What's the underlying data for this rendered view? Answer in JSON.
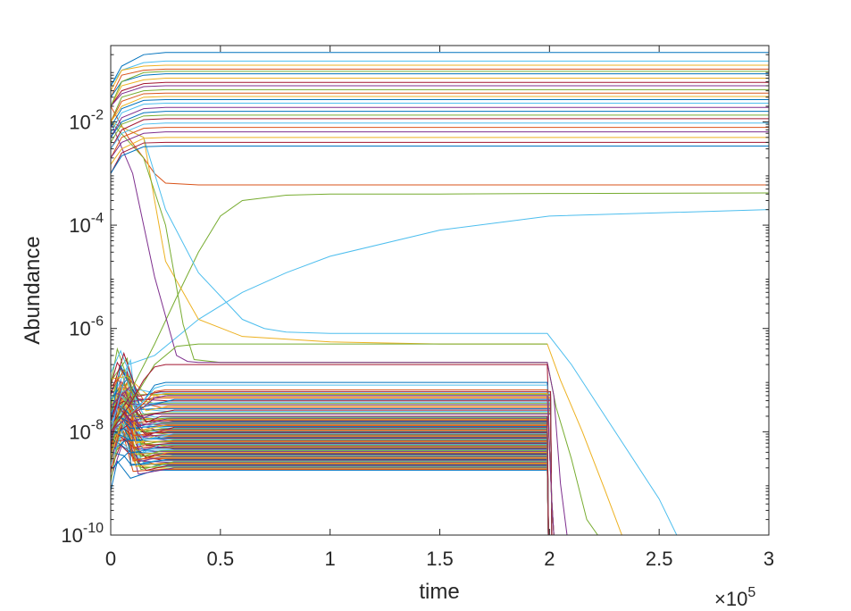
{
  "chart_data": {
    "type": "line",
    "xlabel": "time",
    "ylabel": "Abundance",
    "x_multiplier_label": "×10",
    "x_multiplier_exponent": "5",
    "xlim": [
      0,
      300000
    ],
    "ylim": [
      1e-10,
      0.3
    ],
    "yscale": "log",
    "grid": false,
    "legend": "none",
    "x_ticks": [
      {
        "value": 0,
        "label": "0"
      },
      {
        "value": 50000,
        "label": "0.5"
      },
      {
        "value": 100000,
        "label": "1"
      },
      {
        "value": 150000,
        "label": "1.5"
      },
      {
        "value": 200000,
        "label": "2"
      },
      {
        "value": 250000,
        "label": "2.5"
      },
      {
        "value": 300000,
        "label": "3"
      }
    ],
    "y_ticks": [
      {
        "value": 1e-10,
        "base": "10",
        "exp": "-10"
      },
      {
        "value": 1e-08,
        "base": "10",
        "exp": "-8"
      },
      {
        "value": 1e-06,
        "base": "10",
        "exp": "-6"
      },
      {
        "value": 0.0001,
        "base": "10",
        "exp": "-4"
      },
      {
        "value": 0.01,
        "base": "10",
        "exp": "-2"
      }
    ],
    "series": [
      {
        "color": "#4DBEEE",
        "x": [
          0,
          8000,
          20000,
          40000,
          60000,
          80000,
          100000,
          150000,
          200000,
          300000
        ],
        "y": [
          1e-08,
          2e-07,
          3e-07,
          1.5e-06,
          5e-06,
          1.2e-05,
          2.5e-05,
          8e-05,
          0.00015,
          0.0002
        ]
      },
      {
        "color": "#77AC30",
        "x": [
          0,
          8000,
          20000,
          30000,
          40000,
          50000,
          60000,
          80000,
          100000,
          150000,
          200000,
          300000
        ],
        "y": [
          1e-08,
          5e-08,
          5e-07,
          4e-06,
          3e-05,
          0.00015,
          0.0003,
          0.00038,
          0.0004,
          0.0004,
          0.00041,
          0.00042
        ]
      },
      {
        "color": "#D95319",
        "x": [
          0,
          8000,
          15000,
          20000,
          25000,
          40000,
          100000,
          300000
        ],
        "y": [
          0.02,
          0.005,
          0.002,
          0.001,
          0.00065,
          0.0006,
          0.0006,
          0.0006
        ]
      },
      {
        "color": "#4DBEEE",
        "x": [
          0,
          15000,
          20000,
          25000,
          40000,
          60000,
          70000,
          80000,
          100000,
          150000,
          199000,
          210000,
          230000,
          250000,
          258000
        ],
        "y": [
          0.01,
          0.005,
          0.001,
          0.0002,
          1.2e-05,
          1.5e-06,
          1e-06,
          8.5e-07,
          8e-07,
          8e-07,
          8e-07,
          2e-07,
          1e-08,
          5e-10,
          1e-10
        ]
      },
      {
        "color": "#EDB120",
        "x": [
          0,
          15000,
          20000,
          25000,
          40000,
          60000,
          100000,
          150000,
          199000,
          205000,
          215000,
          225000,
          233000
        ],
        "y": [
          0.01,
          0.005,
          0.0003,
          2e-05,
          1.5e-06,
          7e-07,
          5.5e-07,
          5e-07,
          5e-07,
          1e-07,
          1e-08,
          8e-10,
          1e-10
        ]
      },
      {
        "color": "#77AC30",
        "x": [
          0,
          15000,
          25000,
          33000,
          38000,
          50000,
          100000,
          150000,
          199000,
          203000,
          210000,
          217000,
          222000
        ],
        "y": [
          0.01,
          0.002,
          0.0001,
          1.2e-06,
          2.5e-07,
          2.2e-07,
          2.2e-07,
          2.2e-07,
          2.2e-07,
          3e-08,
          3e-09,
          2e-10,
          1e-10
        ]
      },
      {
        "color": "#7E2F8E",
        "x": [
          0,
          10000,
          20000,
          30000,
          35000,
          40000,
          100000,
          199000,
          202000,
          205000,
          208000
        ],
        "y": [
          0.01,
          0.001,
          1e-05,
          3e-07,
          2.3e-07,
          2.2e-07,
          2.2e-07,
          2.2e-07,
          5e-08,
          1e-09,
          1e-10
        ]
      },
      {
        "color": "#77AC30",
        "x": [
          0,
          10000,
          20000,
          30000,
          40000,
          50000,
          100000,
          150000,
          199000
        ],
        "y": [
          1e-08,
          4e-08,
          2e-07,
          4.5e-07,
          5e-07,
          5e-07,
          5e-07,
          5e-07,
          5e-07
        ]
      },
      {
        "color": "#A2142F",
        "x": [
          0,
          8000,
          15000,
          20000,
          25000,
          40000,
          100000,
          199000,
          200000,
          201000,
          202000
        ],
        "y": [
          1e-08,
          3e-08,
          1e-07,
          1.8e-07,
          2e-07,
          2e-07,
          2e-07,
          2e-07,
          5e-09,
          5e-10,
          1e-10
        ]
      },
      {
        "color": "#0072BD",
        "x": [
          0,
          8000,
          15000,
          20000,
          25000,
          40000,
          100000,
          199000,
          200000,
          201000,
          202000
        ],
        "y": [
          1e-08,
          2e-08,
          4e-08,
          8e-08,
          9e-08,
          9e-08,
          9e-08,
          9e-08,
          5e-09,
          5e-10,
          1e-10
        ]
      },
      {
        "color": "#4DBEEE",
        "x": [
          0,
          8000,
          15000,
          20000,
          25000,
          40000,
          100000,
          199000,
          200000,
          201000,
          202000
        ],
        "y": [
          1e-08,
          2e-08,
          4e-08,
          7e-08,
          8e-08,
          8e-08,
          8e-08,
          8e-08,
          5e-09,
          5e-10,
          1e-10
        ]
      },
      {
        "color": "#D95319",
        "x": [
          0,
          8000,
          15000,
          20000,
          25000,
          40000,
          100000,
          199000,
          200000,
          201000,
          202000
        ],
        "y": [
          1e-08,
          2e-08,
          3.5e-08,
          6e-08,
          6.5e-08,
          6.5e-08,
          6.5e-08,
          6.5e-08,
          5e-09,
          5e-10,
          1e-10
        ]
      },
      {
        "color": "#EDB120",
        "x": [
          0,
          8000,
          15000,
          20000,
          25000,
          40000,
          100000,
          199000,
          200000,
          201000,
          202000
        ],
        "y": [
          1e-08,
          2e-08,
          3e-08,
          5e-08,
          5.5e-08,
          5.5e-08,
          5.5e-08,
          5.5e-08,
          5e-09,
          5e-10,
          1e-10
        ]
      },
      {
        "color": "#7E2F8E",
        "x": [
          0,
          8000,
          15000,
          20000,
          25000,
          40000,
          100000,
          199000,
          200000,
          201000,
          202000
        ],
        "y": [
          1e-08,
          2e-08,
          3e-08,
          4.5e-08,
          5e-08,
          5e-08,
          5e-08,
          5e-08,
          5e-09,
          5e-10,
          1e-10
        ]
      },
      {
        "color": "#4DBEEE",
        "x": [
          0,
          5000,
          15000,
          25000,
          100000,
          300000
        ],
        "y": [
          0.05,
          0.1,
          0.14,
          0.15,
          0.15,
          0.15
        ]
      },
      {
        "color": "#D95319",
        "x": [
          0,
          5000,
          15000,
          25000,
          100000,
          300000
        ],
        "y": [
          0.03,
          0.08,
          0.1,
          0.105,
          0.105,
          0.105
        ]
      },
      {
        "color": "#0072BD",
        "x": [
          0,
          5000,
          15000,
          25000,
          100000,
          300000
        ],
        "y": [
          0.03,
          0.06,
          0.08,
          0.085,
          0.085,
          0.085
        ]
      },
      {
        "color": "#EDB120",
        "x": [
          0,
          5000,
          15000,
          25000,
          100000,
          300000
        ],
        "y": [
          0.02,
          0.05,
          0.065,
          0.07,
          0.07,
          0.07
        ]
      },
      {
        "color": "#A2142F",
        "x": [
          0,
          5000,
          15000,
          25000,
          100000,
          300000
        ],
        "y": [
          0.02,
          0.04,
          0.055,
          0.058,
          0.058,
          0.058
        ]
      },
      {
        "color": "#7E2F8E",
        "x": [
          0,
          5000,
          15000,
          25000,
          100000,
          300000
        ],
        "y": [
          0.02,
          0.035,
          0.048,
          0.05,
          0.05,
          0.05
        ]
      },
      {
        "color": "#77AC30",
        "x": [
          0,
          5000,
          15000,
          25000,
          100000,
          300000
        ],
        "y": [
          0.01,
          0.03,
          0.04,
          0.042,
          0.042,
          0.042
        ]
      },
      {
        "color": "#D95319",
        "x": [
          0,
          5000,
          15000,
          25000,
          100000,
          300000
        ],
        "y": [
          0.01,
          0.025,
          0.035,
          0.036,
          0.036,
          0.036
        ]
      },
      {
        "color": "#EDB120",
        "x": [
          0,
          5000,
          15000,
          25000,
          100000,
          300000
        ],
        "y": [
          0.01,
          0.02,
          0.03,
          0.031,
          0.031,
          0.031
        ]
      },
      {
        "color": "#0072BD",
        "x": [
          0,
          5000,
          15000,
          25000,
          100000,
          300000
        ],
        "y": [
          0.008,
          0.018,
          0.026,
          0.027,
          0.027,
          0.027
        ]
      },
      {
        "color": "#4DBEEE",
        "x": [
          0,
          5000,
          15000,
          25000,
          100000,
          300000
        ],
        "y": [
          0.006,
          0.015,
          0.022,
          0.023,
          0.023,
          0.023
        ]
      },
      {
        "color": "#7E2F8E",
        "x": [
          0,
          5000,
          15000,
          25000,
          100000,
          300000
        ],
        "y": [
          0.005,
          0.012,
          0.018,
          0.019,
          0.019,
          0.019
        ]
      },
      {
        "color": "#0072BD",
        "x": [
          0,
          5000,
          15000,
          25000,
          100000,
          300000
        ],
        "y": [
          0.005,
          0.01,
          0.015,
          0.016,
          0.016,
          0.016
        ]
      },
      {
        "color": "#77AC30",
        "x": [
          0,
          5000,
          15000,
          25000,
          100000,
          300000
        ],
        "y": [
          0.004,
          0.009,
          0.013,
          0.0135,
          0.0135,
          0.0135
        ]
      },
      {
        "color": "#A2142F",
        "x": [
          0,
          5000,
          15000,
          25000,
          100000,
          300000
        ],
        "y": [
          0.003,
          0.007,
          0.011,
          0.0115,
          0.0115,
          0.0115
        ]
      },
      {
        "color": "#4DBEEE",
        "x": [
          0,
          5000,
          15000,
          25000,
          100000,
          300000
        ],
        "y": [
          0.003,
          0.006,
          0.009,
          0.0095,
          0.0095,
          0.0095
        ]
      },
      {
        "color": "#D95319",
        "x": [
          0,
          5000,
          15000,
          25000,
          100000,
          300000
        ],
        "y": [
          0.002,
          0.005,
          0.0075,
          0.0078,
          0.0078,
          0.0078
        ]
      },
      {
        "color": "#7E2F8E",
        "x": [
          0,
          5000,
          15000,
          25000,
          100000,
          300000
        ],
        "y": [
          0.002,
          0.004,
          0.006,
          0.0064,
          0.0064,
          0.0064
        ]
      },
      {
        "color": "#EDB120",
        "x": [
          0,
          5000,
          15000,
          25000,
          100000,
          300000
        ],
        "y": [
          0.0015,
          0.003,
          0.0048,
          0.005,
          0.005,
          0.005
        ]
      },
      {
        "color": "#A2142F",
        "x": [
          0,
          5000,
          15000,
          25000,
          100000,
          300000
        ],
        "y": [
          0.001,
          0.0025,
          0.0039,
          0.004,
          0.004,
          0.004
        ]
      },
      {
        "color": "#0072BD",
        "x": [
          0,
          5000,
          15000,
          25000,
          100000,
          300000
        ],
        "y": [
          0.001,
          0.0022,
          0.0033,
          0.0034,
          0.0034,
          0.0034
        ]
      },
      {
        "color": "#77AC30",
        "x": [
          0,
          5000,
          15000,
          25000,
          100000,
          300000
        ],
        "y": [
          0.02,
          0.06,
          0.09,
          0.095,
          0.095,
          0.095
        ]
      },
      {
        "color": "#0072BD",
        "x": [
          0,
          5000,
          15000,
          25000,
          100000,
          300000
        ],
        "y": [
          0.05,
          0.12,
          0.2,
          0.22,
          0.22,
          0.22
        ]
      },
      {
        "color": "#EDB120",
        "x": [
          0,
          5000,
          15000,
          25000,
          100000,
          300000
        ],
        "y": [
          0.04,
          0.1,
          0.12,
          0.125,
          0.125,
          0.125
        ]
      }
    ],
    "dense_bands": [
      {
        "range": [
          1.8e-09,
          2e-08
        ],
        "count": 70,
        "end_x": 199000
      },
      {
        "range": [
          2.2e-08,
          6e-08
        ],
        "count": 18,
        "end_x": 200500
      }
    ],
    "palette": [
      "#0072BD",
      "#D95319",
      "#EDB120",
      "#7E2F8E",
      "#77AC30",
      "#4DBEEE",
      "#A2142F"
    ]
  }
}
